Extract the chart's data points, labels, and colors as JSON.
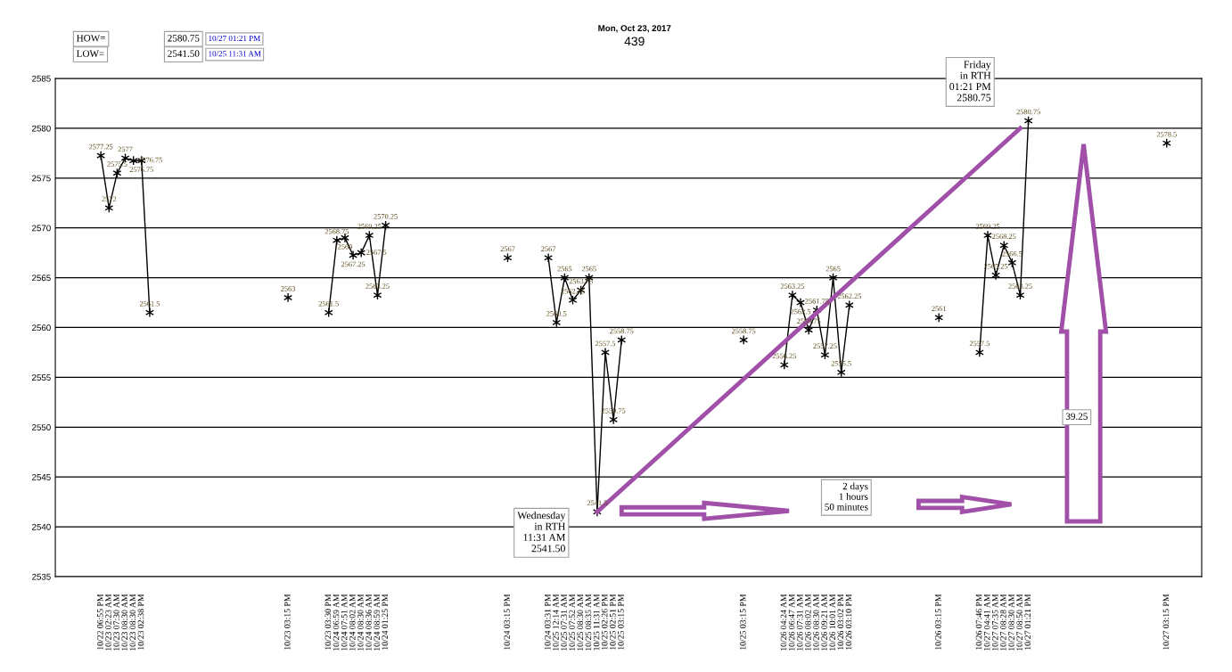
{
  "chart_data": {
    "type": "line",
    "title": "Mon, Oct 23, 2017",
    "subtitle": "439",
    "categories": [
      "10/22 06:55 PM",
      "10/23 02:23 AM",
      "10/23 07:30 AM",
      "10/23 08:30 AM",
      "10/23 08:30 AM",
      "10/23 02:38 PM",
      null,
      null,
      null,
      null,
      null,
      null,
      null,
      null,
      null,
      null,
      null,
      null,
      null,
      null,
      null,
      null,
      null,
      "10/23 03:15 PM",
      null,
      null,
      null,
      null,
      "10/23 03:30 PM",
      "10/24 06:59 AM",
      "10/24 07:51 AM",
      "10/24 08:02 AM",
      "10/24 08:30 AM",
      "10/24 08:36 AM",
      "10/24 08:59 AM",
      "10/24 01:25 PM",
      null,
      null,
      null,
      null,
      null,
      null,
      null,
      null,
      null,
      null,
      null,
      null,
      null,
      null,
      "10/24 03:15 PM",
      null,
      null,
      null,
      null,
      "10/24 03:31 PM",
      "10/25 12:14 AM",
      "10/25 07:31 AM",
      "10/25 07:52 AM",
      "10/25 08:30 AM",
      "10/25 08:35 AM",
      "10/25 11:31 AM",
      "10/25 02:26 PM",
      "10/25 02:51 PM",
      "10/25 03:15 PM",
      null,
      null,
      null,
      null,
      null,
      null,
      null,
      null,
      null,
      null,
      null,
      null,
      null,
      null,
      "10/25 03:15 PM",
      null,
      null,
      null,
      null,
      "10/26 04:24 AM",
      "10/26 06:47 AM",
      "10/26 07:31 AM",
      "10/26 08:02 AM",
      "10/26 08:30 AM",
      "10/26 09:21 AM",
      "10/26 10:01 AM",
      "10/26 03:02 PM",
      "10/26 03:10 PM",
      null,
      null,
      null,
      null,
      null,
      null,
      null,
      null,
      null,
      null,
      "10/26 03:15 PM",
      null,
      null,
      null,
      null,
      "10/26 07:46 PM",
      "10/27 04:41 AM",
      "10/27 07:35 AM",
      "10/27 08:28 AM",
      "10/27 08:30 AM",
      "10/27 08:50 AM",
      "10/27 01:21 PM",
      null,
      null,
      null,
      null,
      null,
      null,
      null,
      null,
      null,
      null,
      null,
      null,
      null,
      null,
      null,
      null,
      "10/27 03:15 PM"
    ],
    "series": [
      {
        "color": "#000000",
        "values": [
          2577.25,
          2572,
          2575.5,
          2577,
          2576.75,
          2576.75,
          2561.5,
          null,
          null,
          null,
          null,
          null,
          null,
          null,
          null,
          null,
          null,
          null,
          null,
          null,
          null,
          null,
          null,
          2563,
          null,
          null,
          null,
          null,
          2561.5,
          2568.75,
          2569,
          2567.25,
          2567.5,
          2569.25,
          2563.25,
          2570.25,
          null,
          null,
          null,
          null,
          null,
          null,
          null,
          null,
          null,
          null,
          null,
          null,
          null,
          null,
          2567,
          null,
          null,
          null,
          null,
          2567,
          2560.5,
          2565,
          2562.75,
          2563.75,
          2565,
          2541.5,
          2557.5,
          2550.75,
          2558.75,
          null,
          null,
          null,
          null,
          null,
          null,
          null,
          null,
          null,
          null,
          null,
          null,
          null,
          null,
          2558.75,
          null,
          null,
          null,
          null,
          2556.25,
          2563.25,
          2562.5,
          2559.75,
          2561.75,
          2557.25,
          2565,
          2555.5,
          2562.25,
          null,
          null,
          null,
          null,
          null,
          null,
          null,
          null,
          null,
          null,
          2561,
          null,
          null,
          null,
          null,
          2557.5,
          2569.25,
          2565.25,
          2568.25,
          2566.5,
          2563.25,
          2580.75,
          null,
          null,
          null,
          null,
          null,
          null,
          null,
          null,
          null,
          null,
          null,
          null,
          null,
          null,
          null,
          null,
          2578.5
        ]
      },
      {
        "type": "line",
        "color": "#a050a8",
        "marker": "none",
        "data_labels": false,
        "x": [
          "10/25 11:31 AM",
          "10/27 08:50 AM"
        ],
        "values": [
          2541.5,
          2580
        ]
      }
    ],
    "ylim": [
      2535,
      2585
    ],
    "yticks": [
      2535,
      2540,
      2545,
      2550,
      2555,
      2560,
      2565,
      2570,
      2575,
      2580,
      2585
    ],
    "grid": "y",
    "legend": false,
    "marker": "cross",
    "line_style": "solid",
    "data_labels": true,
    "annotations": [
      "HOW=",
      "2580.75",
      "10/27 01:21 PM",
      "LOW=",
      "2541.50",
      "10/25 11:31 AM",
      "Friday\nin RTH\n01:21 PM\n2580.75",
      "Wednesday\nin RTH\n11:31 AM\n2541.50",
      "2 days\n1 hours\n50 minutes",
      "39.25"
    ]
  }
}
